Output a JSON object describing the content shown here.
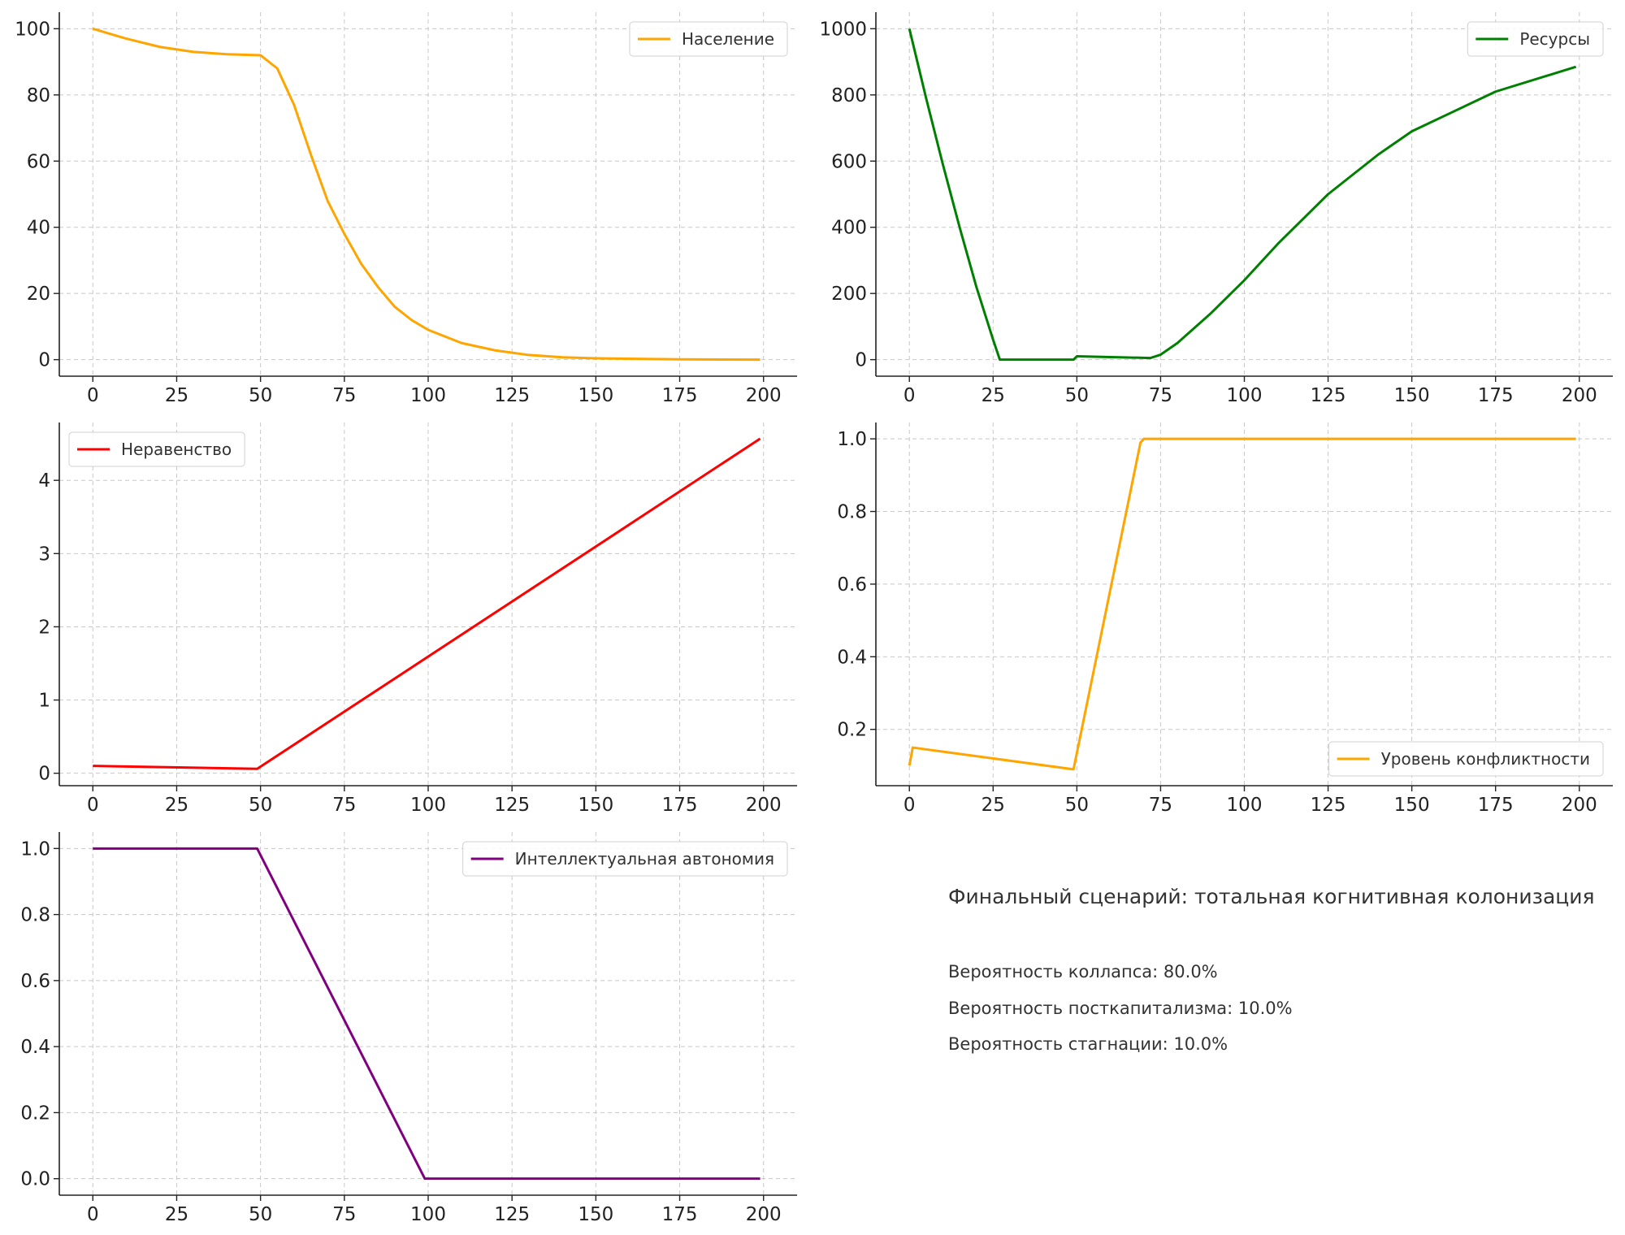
{
  "chart_data": [
    {
      "type": "line",
      "x": [
        0,
        10,
        20,
        30,
        40,
        50,
        55,
        60,
        65,
        70,
        75,
        80,
        85,
        90,
        95,
        100,
        110,
        120,
        130,
        140,
        150,
        175,
        199
      ],
      "series": [
        {
          "name": "Население",
          "color": "#ffa500",
          "values": [
            100,
            97,
            94.5,
            93,
            92.3,
            92,
            88,
            77,
            62,
            48,
            38,
            29,
            22,
            16,
            12,
            9,
            5,
            2.8,
            1.4,
            0.7,
            0.4,
            0.1,
            0
          ]
        }
      ],
      "xlim": [
        -10,
        210
      ],
      "xticks": [
        0,
        25,
        50,
        75,
        100,
        125,
        150,
        175,
        200
      ],
      "ylim": [
        -5,
        105
      ],
      "yticks": [
        0,
        20,
        40,
        60,
        80,
        100
      ],
      "grid": true,
      "legend": "upper right"
    },
    {
      "type": "line",
      "x": [
        0,
        5,
        10,
        15,
        20,
        25,
        27,
        48,
        49,
        50,
        72,
        75,
        80,
        90,
        100,
        110,
        125,
        140,
        150,
        175,
        199
      ],
      "series": [
        {
          "name": "Ресурсы",
          "color": "#008000",
          "values": [
            1000,
            790,
            590,
            400,
            220,
            60,
            0,
            0,
            0,
            10,
            5,
            15,
            50,
            140,
            240,
            350,
            500,
            620,
            690,
            810,
            885
          ]
        }
      ],
      "xlim": [
        -10,
        210
      ],
      "xticks": [
        0,
        25,
        50,
        75,
        100,
        125,
        150,
        175,
        200
      ],
      "ylim": [
        -50,
        1050
      ],
      "yticks": [
        0,
        200,
        400,
        600,
        800,
        1000
      ],
      "grid": true,
      "legend": "upper right"
    },
    {
      "type": "line",
      "x": [
        0,
        49,
        199
      ],
      "series": [
        {
          "name": "Неравенство",
          "color": "#ff0000",
          "values": [
            0.1,
            0.06,
            4.57
          ]
        }
      ],
      "xlim": [
        -10,
        210
      ],
      "xticks": [
        0,
        25,
        50,
        75,
        100,
        125,
        150,
        175,
        200
      ],
      "ylim": [
        -0.17,
        4.79
      ],
      "yticks": [
        0,
        1,
        2,
        3,
        4
      ],
      "grid": true,
      "legend": "upper left"
    },
    {
      "type": "line",
      "x": [
        0,
        1,
        49,
        69,
        70,
        199
      ],
      "series": [
        {
          "name": "Уровень конфликтности",
          "color": "#ffa500",
          "values": [
            0.1,
            0.15,
            0.09,
            0.99,
            1,
            1
          ]
        }
      ],
      "xlim": [
        -10,
        210
      ],
      "xticks": [
        0,
        25,
        50,
        75,
        100,
        125,
        150,
        175,
        200
      ],
      "ylim": [
        0.045,
        1.045
      ],
      "yticks": [
        0.2,
        0.4,
        0.6,
        0.8,
        {
          "value": 1,
          "label": "1.0"
        }
      ],
      "grid": true,
      "legend": "lower right"
    },
    {
      "type": "line",
      "x": [
        0,
        49,
        99,
        199
      ],
      "series": [
        {
          "name": "Интеллектуальная автономия",
          "color": "#800080",
          "values": [
            1,
            1,
            0,
            0
          ]
        }
      ],
      "xlim": [
        -10,
        210
      ],
      "xticks": [
        0,
        25,
        50,
        75,
        100,
        125,
        150,
        175,
        200
      ],
      "ylim": [
        -0.05,
        1.05
      ],
      "yticks": [
        {
          "value": 0,
          "label": "0.0"
        },
        0.2,
        0.4,
        0.6,
        0.8,
        {
          "value": 1,
          "label": "1.0"
        }
      ],
      "grid": true,
      "legend": "upper right"
    }
  ],
  "summary": {
    "title": "Финальный сценарий: тотальная когнитивная колонизация",
    "lines": [
      "Вероятность коллапса: 80.0%",
      "Вероятность посткапитализма: 10.0%",
      "Вероятность стагнации: 10.0%"
    ]
  }
}
